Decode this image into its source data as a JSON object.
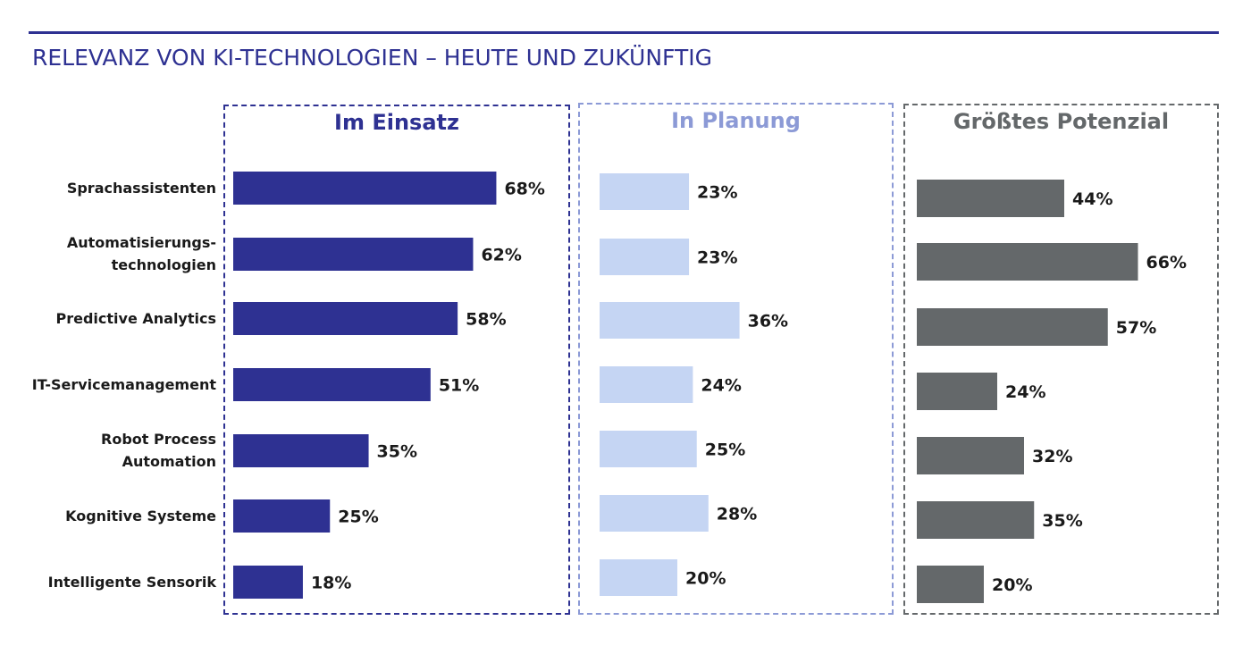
{
  "title": "RELEVANZ VON KI-TECHNOLOGIEN – HEUTE UND ZUKÜNFTIG",
  "colors": {
    "title": "#2e3192",
    "rule": "#2e3192",
    "einsatz": "#2e3192",
    "planung": "#c5d5f3",
    "planung_title": "#8c9ad6",
    "potenzial": "#64686a",
    "potenzial_title": "#64686a"
  },
  "chart_data": {
    "type": "bar",
    "orientation": "horizontal",
    "categories": [
      [
        "Sprachassistenten"
      ],
      [
        "Automatisierungs-",
        "technologien"
      ],
      [
        "Predictive Analytics"
      ],
      [
        "IT-Servicemanagement"
      ],
      [
        "Robot Process",
        "Automation"
      ],
      [
        "Kognitive Systeme"
      ],
      [
        "Intelligente Sensorik"
      ]
    ],
    "series": [
      {
        "name": "Im Einsatz",
        "values": [
          68,
          62,
          58,
          51,
          35,
          25,
          18
        ],
        "labels": [
          "68%",
          "62%",
          "58%",
          "51%",
          "35%",
          "25%",
          "18%"
        ]
      },
      {
        "name": "In Planung",
        "values": [
          23,
          23,
          36,
          24,
          25,
          28,
          20
        ],
        "labels": [
          "23%",
          "23%",
          "36%",
          "24%",
          "25%",
          "28%",
          "20%"
        ]
      },
      {
        "name": "Größtes Potenzial",
        "values": [
          44,
          66,
          57,
          24,
          32,
          35,
          20
        ],
        "labels": [
          "44%",
          "66%",
          "57%",
          "24%",
          "32%",
          "35%",
          "20%"
        ]
      }
    ],
    "unit": "%",
    "grid": false
  }
}
